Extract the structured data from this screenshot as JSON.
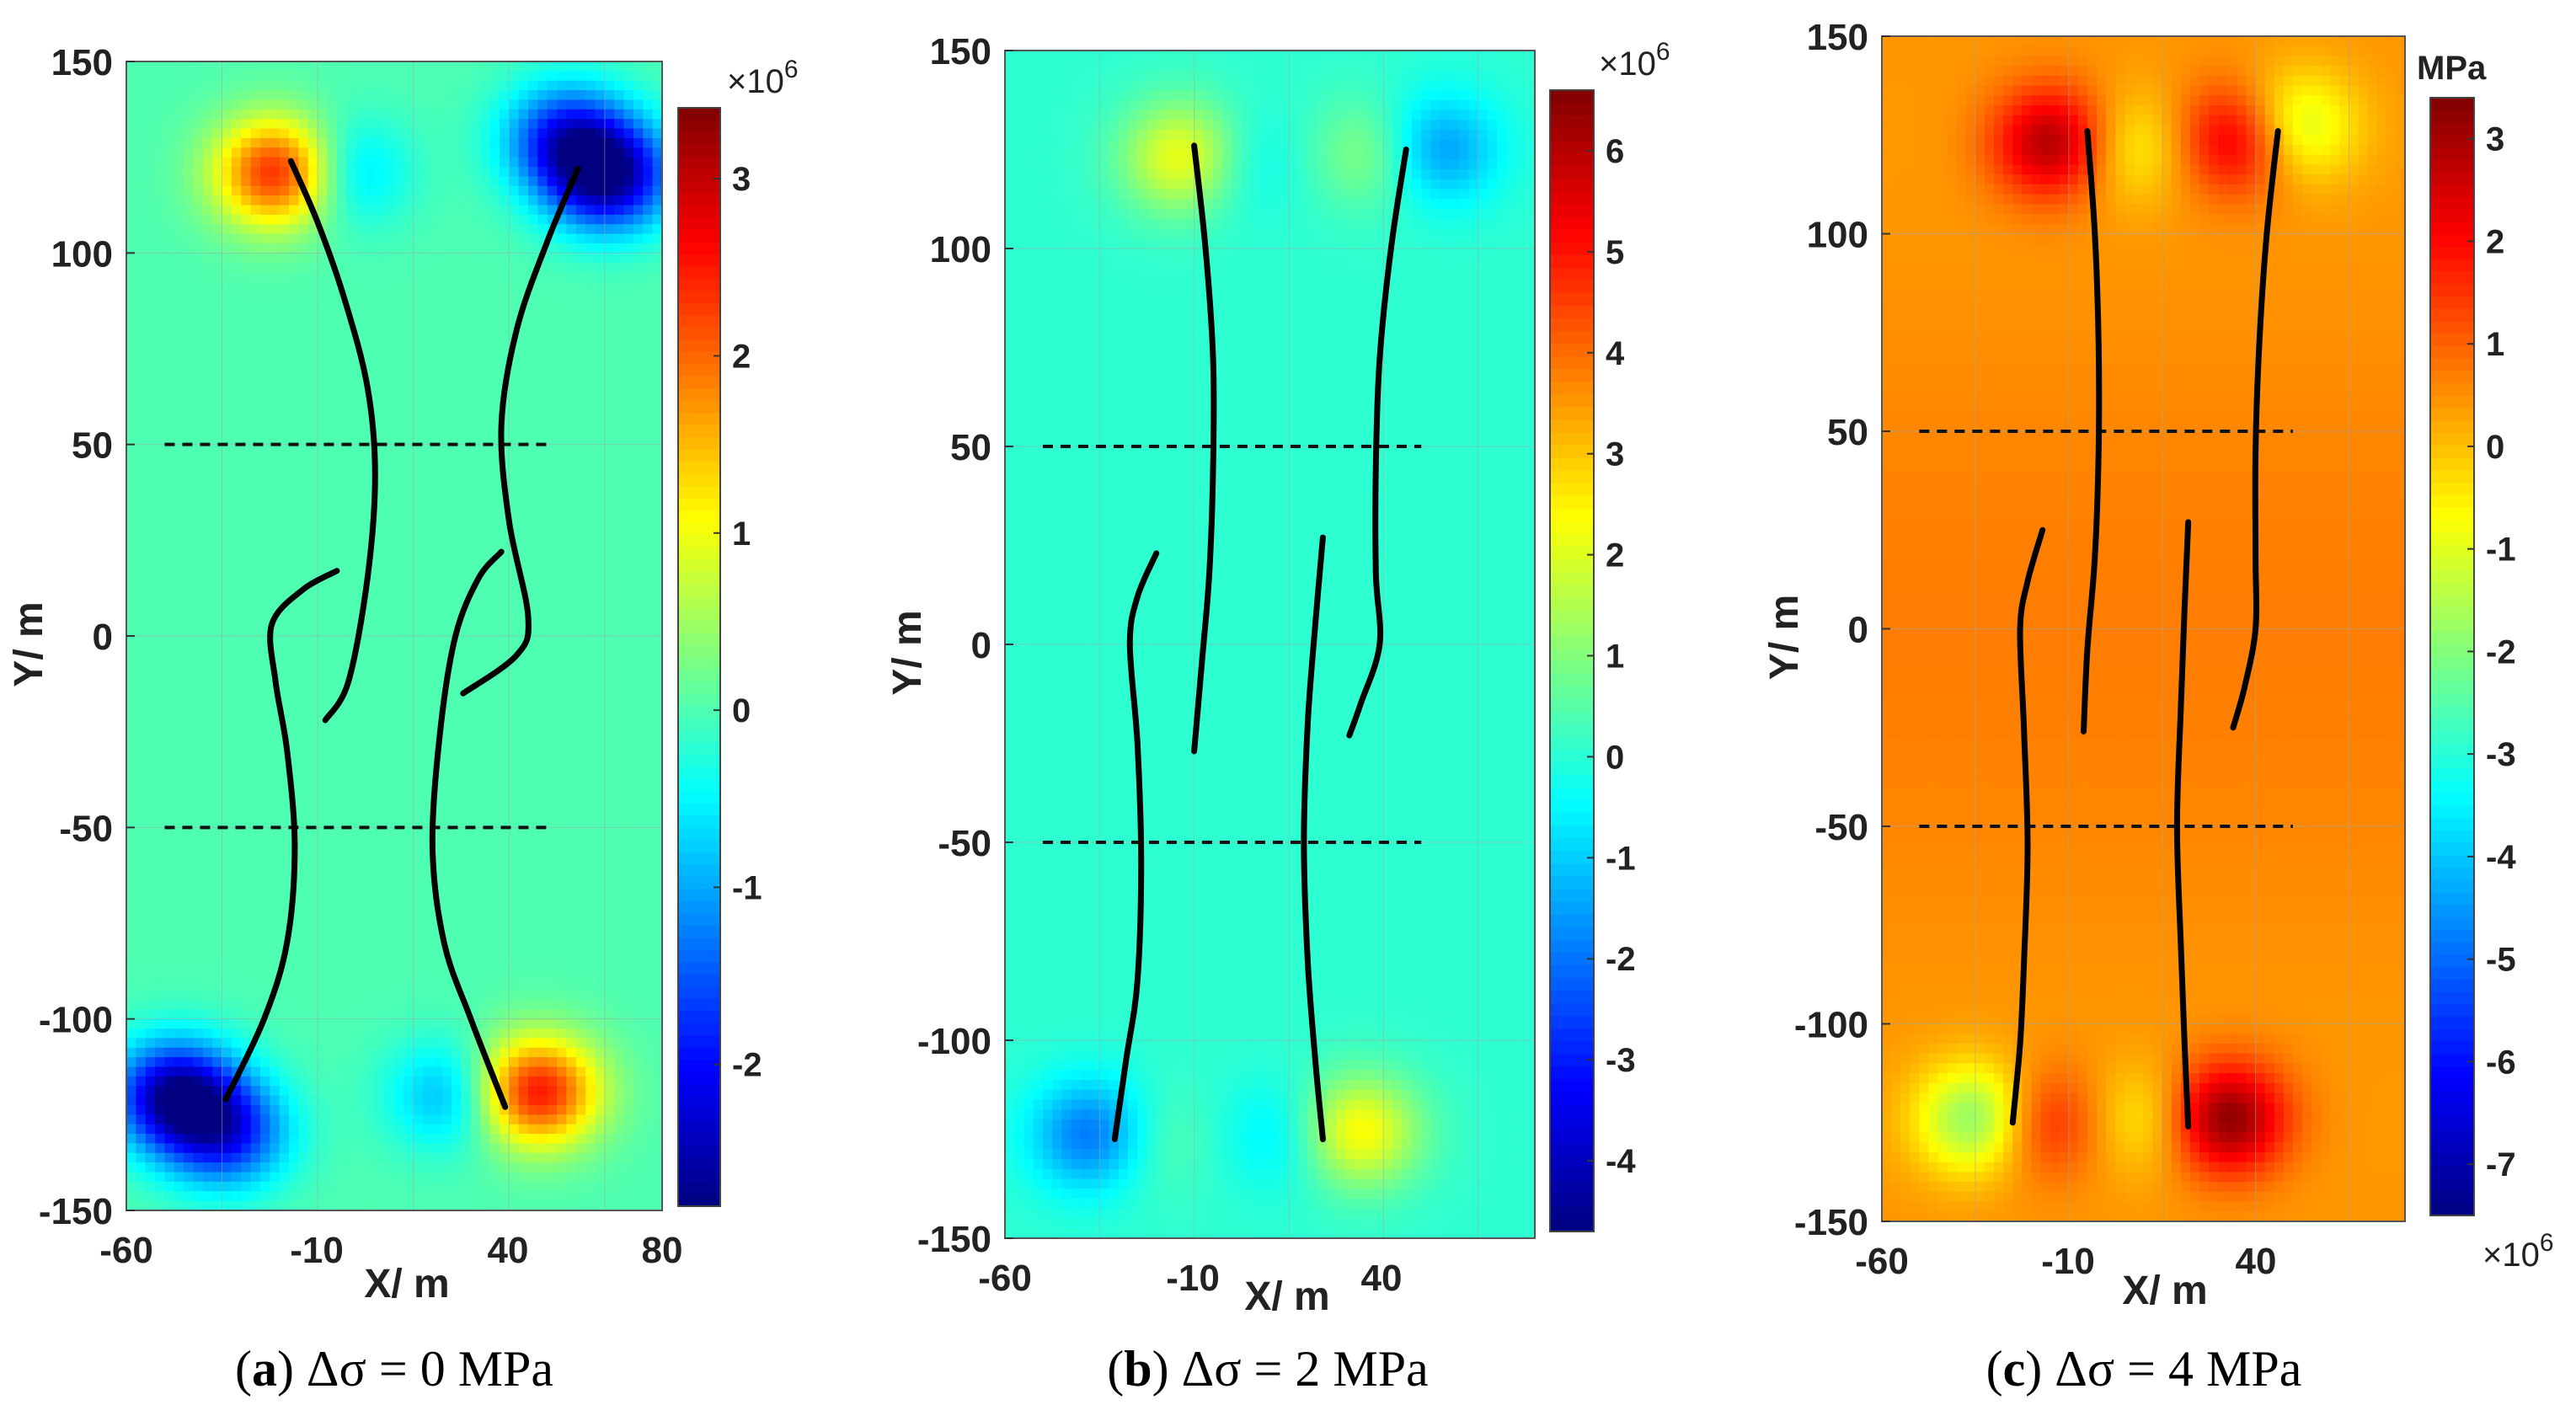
{
  "chart_data": [
    {
      "type": "heatmap",
      "caption": {
        "label": "a",
        "text": "Δσ = 0 MPa"
      },
      "xlabel": "X/ m",
      "ylabel": "Y/ m",
      "xlim": [
        -60,
        80
      ],
      "ylim": [
        -150,
        150
      ],
      "xticks": [
        "-60",
        "-10",
        "40",
        "80"
      ],
      "yticks": [
        "150",
        "100",
        "50",
        "0",
        "-50",
        "-100",
        "-150"
      ],
      "colorbar": {
        "range": [
          -2.8,
          3.4
        ],
        "ticks": [
          "3",
          "2",
          "1",
          "0",
          "-1",
          "-2"
        ],
        "exponent_label": "×10",
        "exponent_power": "6",
        "unit": ""
      },
      "dashed_lines_y": [
        50,
        -50
      ],
      "cracks": [
        {
          "name": "upper-left",
          "points": [
            [
              -17,
              124
            ],
            [
              -10,
              108
            ],
            [
              -3,
              88
            ],
            [
              3,
              65
            ],
            [
              5,
              42
            ],
            [
              3,
              15
            ],
            [
              -2,
              -12
            ],
            [
              -8,
              -22
            ]
          ]
        },
        {
          "name": "upper-right",
          "points": [
            [
              58,
              122
            ],
            [
              50,
              103
            ],
            [
              42,
              80
            ],
            [
              38,
              55
            ],
            [
              40,
              30
            ],
            [
              45,
              5
            ],
            [
              42,
              -5
            ],
            [
              28,
              -15
            ]
          ]
        },
        {
          "name": "mid-left",
          "points": [
            [
              -5,
              17
            ],
            [
              -14,
              12
            ],
            [
              -22,
              3
            ],
            [
              -21,
              -12
            ],
            [
              -18,
              -30
            ],
            [
              -16,
              -55
            ],
            [
              -18,
              -80
            ],
            [
              -24,
              -100
            ],
            [
              -34,
              -121
            ]
          ]
        },
        {
          "name": "mid-right",
          "points": [
            [
              38,
              22
            ],
            [
              32,
              15
            ],
            [
              26,
              0
            ],
            [
              22,
              -25
            ],
            [
              20,
              -55
            ],
            [
              23,
              -80
            ],
            [
              30,
              -100
            ],
            [
              39,
              -123
            ]
          ]
        }
      ],
      "hotspots": [
        {
          "x": -20,
          "y": 121,
          "v": 2.6
        },
        {
          "x": -4,
          "y": 121,
          "v": -1.0
        },
        {
          "x": 55,
          "y": 130,
          "v": -1.8
        },
        {
          "x": 66,
          "y": 120,
          "v": -2.6
        },
        {
          "x": -47,
          "y": -120,
          "v": -2.6
        },
        {
          "x": -34,
          "y": -130,
          "v": -1.8
        },
        {
          "x": 47,
          "y": -119,
          "v": 2.6
        },
        {
          "x": 25,
          "y": -120,
          "v": -1.0
        }
      ]
    },
    {
      "type": "heatmap",
      "caption": {
        "label": "b",
        "text": "Δσ = 2 MPa"
      },
      "xlabel": "X/ m",
      "ylabel": "Y/ m",
      "xlim": [
        -60,
        80
      ],
      "ylim": [
        -150,
        150
      ],
      "xticks": [
        "-60",
        "-10",
        "40"
      ],
      "yticks": [
        "150",
        "100",
        "50",
        "0",
        "-50",
        "-100",
        "-150"
      ],
      "colorbar": {
        "range": [
          -4.7,
          6.6
        ],
        "ticks": [
          "6",
          "5",
          "4",
          "3",
          "2",
          "1",
          "0",
          "-1",
          "-2",
          "-3",
          "-4"
        ],
        "exponent_label": "×10",
        "exponent_power": "6",
        "unit": ""
      },
      "dashed_lines_y": [
        50,
        -50
      ],
      "cracks": [
        {
          "name": "left-upper",
          "points": [
            [
              -10,
              126
            ],
            [
              -7,
              100
            ],
            [
              -5,
              72
            ],
            [
              -5,
              45
            ],
            [
              -6,
              18
            ],
            [
              -8,
              -5
            ],
            [
              -10,
              -27
            ]
          ]
        },
        {
          "name": "right-upper",
          "points": [
            [
              46,
              125
            ],
            [
              42,
              100
            ],
            [
              39,
              72
            ],
            [
              38,
              45
            ],
            [
              38,
              18
            ],
            [
              39,
              0
            ],
            [
              34,
              -15
            ],
            [
              31,
              -23
            ]
          ]
        },
        {
          "name": "left-lower",
          "points": [
            [
              -20,
              23
            ],
            [
              -25,
              12
            ],
            [
              -27,
              0
            ],
            [
              -25,
              -25
            ],
            [
              -24,
              -55
            ],
            [
              -25,
              -85
            ],
            [
              -28,
              -105
            ],
            [
              -31,
              -125
            ]
          ]
        },
        {
          "name": "right-lower",
          "points": [
            [
              24,
              27
            ],
            [
              22,
              5
            ],
            [
              20,
              -20
            ],
            [
              19,
              -50
            ],
            [
              20,
              -80
            ],
            [
              22,
              -105
            ],
            [
              24,
              -125
            ]
          ]
        }
      ],
      "hotspots": [
        {
          "x": -12,
          "y": 123,
          "v": 2.5
        },
        {
          "x": 0,
          "y": 122,
          "v": -0.9
        },
        {
          "x": 54,
          "y": 125,
          "v": -1.8
        },
        {
          "x": 38,
          "y": 124,
          "v": 1.2
        },
        {
          "x": -36,
          "y": -124,
          "v": -2.4
        },
        {
          "x": -24,
          "y": -125,
          "v": 0.9
        },
        {
          "x": 33,
          "y": -123,
          "v": 2.5
        },
        {
          "x": 15,
          "y": -124,
          "v": -0.9
        }
      ]
    },
    {
      "type": "heatmap",
      "caption": {
        "label": "c",
        "text": "Δσ = 4 MPa"
      },
      "xlabel": "X/ m",
      "ylabel": "Y/ m",
      "xlim": [
        -60,
        80
      ],
      "ylim": [
        -150,
        150
      ],
      "xticks": [
        "-60",
        "-10",
        "40"
      ],
      "yticks": [
        "150",
        "100",
        "50",
        "0",
        "-50",
        "-100",
        "-150"
      ],
      "colorbar": {
        "range": [
          -7.5,
          3.4
        ],
        "ticks": [
          "3",
          "2",
          "1",
          "0",
          "-1",
          "-2",
          "-3",
          "-4",
          "-5",
          "-6",
          "-7"
        ],
        "exponent_label": "×10",
        "exponent_power": "6",
        "unit": "MPa"
      },
      "dashed_lines_y": [
        50,
        -50
      ],
      "cracks": [
        {
          "name": "left-upper",
          "points": [
            [
              -5,
              126
            ],
            [
              -3,
              100
            ],
            [
              -2,
              72
            ],
            [
              -2,
              45
            ],
            [
              -3,
              18
            ],
            [
              -5,
              -5
            ],
            [
              -6,
              -26
            ]
          ]
        },
        {
          "name": "right-upper",
          "points": [
            [
              46,
              126
            ],
            [
              43,
              100
            ],
            [
              41,
              72
            ],
            [
              40,
              45
            ],
            [
              40,
              18
            ],
            [
              40,
              0
            ],
            [
              37,
              -15
            ],
            [
              34,
              -25
            ]
          ]
        },
        {
          "name": "left-lower",
          "points": [
            [
              -17,
              25
            ],
            [
              -21,
              12
            ],
            [
              -23,
              0
            ],
            [
              -22,
              -25
            ],
            [
              -21,
              -55
            ],
            [
              -22,
              -85
            ],
            [
              -23,
              -105
            ],
            [
              -25,
              -125
            ]
          ]
        },
        {
          "name": "right-lower",
          "points": [
            [
              22,
              27
            ],
            [
              21,
              5
            ],
            [
              20,
              -20
            ],
            [
              19,
              -50
            ],
            [
              20,
              -80
            ],
            [
              21,
              -105
            ],
            [
              22,
              -126
            ]
          ]
        }
      ],
      "hotspots": [
        {
          "x": -14,
          "y": 123,
          "v": 2.6
        },
        {
          "x": 6,
          "y": 122,
          "v": -1.2
        },
        {
          "x": 50,
          "y": 127,
          "v": -2.0
        },
        {
          "x": 36,
          "y": 124,
          "v": 2.3
        },
        {
          "x": -34,
          "y": -124,
          "v": -2.6
        },
        {
          "x": -18,
          "y": -125,
          "v": 1.6
        },
        {
          "x": 32,
          "y": -124,
          "v": 3.0
        },
        {
          "x": 12,
          "y": -124,
          "v": -1.1
        }
      ]
    }
  ]
}
